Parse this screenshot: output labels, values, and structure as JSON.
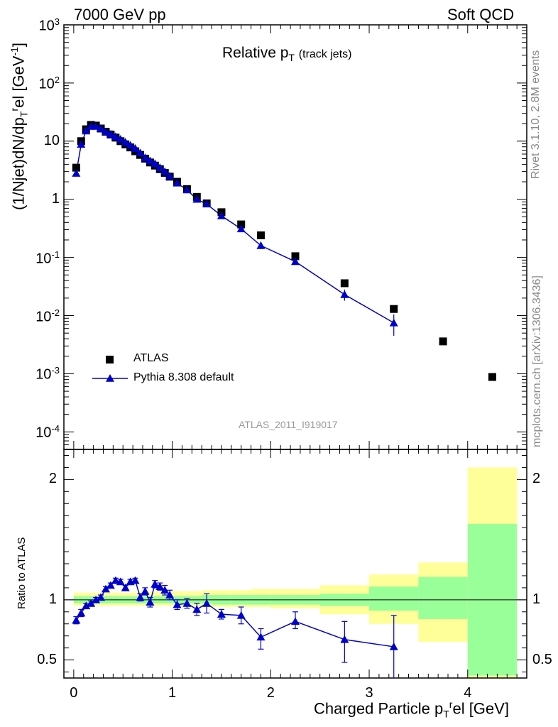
{
  "header": {
    "left": "7000 GeV pp",
    "right": "Soft QCD"
  },
  "side_labels": {
    "rivet": "Rivet 3.1.10,  2.8M events",
    "mcplots": "mcplots.cern.ch [arXiv:1306.3436]"
  },
  "chart_data": [
    {
      "type": "scatter",
      "title_main": "Relative p",
      "title_sub": "T",
      "title_suffix": "(track jets)",
      "ylabel": "(1/Njet)dN/dp",
      "ylabel_sub": "T",
      "ylabel_sup": "r",
      "ylabel_tail": "el [GeV",
      "ylabel_unit_sup": "-1",
      "ylabel_close": "]",
      "yscale": "log",
      "ylim": [
        5e-05,
        1000
      ],
      "xlim": [
        -0.1,
        4.6
      ],
      "y_tick_labels": [
        "10^-4",
        "10^-3",
        "10^-2",
        "10^-1",
        "1",
        "10",
        "10^2",
        "10^3"
      ],
      "analysis_label": "ATLAS_2011_I919017",
      "grid": false,
      "legend_position": "bottom-left",
      "series": [
        {
          "name": "ATLAS",
          "marker": "square",
          "color": "#000000",
          "x": [
            0.025,
            0.075,
            0.125,
            0.175,
            0.225,
            0.275,
            0.325,
            0.375,
            0.425,
            0.475,
            0.525,
            0.575,
            0.625,
            0.675,
            0.725,
            0.775,
            0.825,
            0.875,
            0.925,
            0.975,
            1.05,
            1.15,
            1.25,
            1.35,
            1.5,
            1.7,
            1.9,
            2.25,
            2.75,
            3.25,
            3.75,
            4.25
          ],
          "y": [
            3.5,
            10.0,
            16.0,
            19.0,
            18.5,
            16.5,
            14.5,
            13.0,
            11.5,
            10.0,
            8.8,
            7.8,
            6.7,
            5.8,
            5.0,
            4.3,
            3.8,
            3.3,
            2.85,
            2.45,
            2.0,
            1.5,
            1.1,
            0.85,
            0.6,
            0.37,
            0.24,
            0.105,
            0.036,
            0.013,
            0.0036,
            0.00088
          ]
        },
        {
          "name": "Pythia 8.308 default",
          "marker": "triangle",
          "color": "#0000cc",
          "line": true,
          "x": [
            0.025,
            0.075,
            0.125,
            0.175,
            0.225,
            0.275,
            0.325,
            0.375,
            0.425,
            0.475,
            0.525,
            0.575,
            0.625,
            0.675,
            0.725,
            0.775,
            0.825,
            0.875,
            0.925,
            0.975,
            1.05,
            1.15,
            1.25,
            1.35,
            1.5,
            1.7,
            1.9,
            2.25,
            2.75,
            3.25
          ],
          "y": [
            2.8,
            8.8,
            15.0,
            18.0,
            18.0,
            16.5,
            14.5,
            13.2,
            12.0,
            10.8,
            9.6,
            8.5,
            7.5,
            6.3,
            5.2,
            4.6,
            4.1,
            3.5,
            3.0,
            2.5,
            1.9,
            1.45,
            1.0,
            0.83,
            0.52,
            0.31,
            0.16,
            0.085,
            0.023,
            0.0075
          ],
          "yerr_high": [
            2.9,
            9.0,
            15.3,
            18.3,
            18.3,
            16.8,
            14.8,
            13.5,
            12.3,
            11.0,
            9.8,
            8.7,
            7.7,
            6.5,
            5.4,
            4.8,
            4.3,
            3.7,
            3.2,
            2.7,
            2.0,
            1.55,
            1.06,
            0.9,
            0.57,
            0.34,
            0.18,
            0.094,
            0.028,
            0.0105
          ],
          "yerr_low": [
            2.7,
            8.6,
            14.7,
            17.7,
            17.7,
            16.2,
            14.2,
            12.9,
            11.7,
            10.6,
            9.4,
            8.3,
            7.3,
            6.1,
            5.0,
            4.4,
            3.9,
            3.3,
            2.8,
            2.3,
            1.8,
            1.35,
            0.94,
            0.76,
            0.47,
            0.28,
            0.14,
            0.076,
            0.018,
            0.0045
          ]
        }
      ]
    },
    {
      "type": "scatter",
      "ylabel": "Ratio to ATLAS",
      "xlabel": "Charged Particle p",
      "xlabel_sub": "T",
      "xlabel_sup": "r",
      "xlabel_tail": "el [GeV]",
      "xlim": [
        -0.1,
        4.6
      ],
      "ylim": [
        0.35,
        2.25
      ],
      "x_tick_labels": [
        "0",
        "1",
        "2",
        "3",
        "4"
      ],
      "y_tick_labels": [
        "0.5",
        "1",
        "2"
      ],
      "reference_line": 1.0,
      "band_colors": {
        "inner": "#99ff99",
        "outer": "#ffff99"
      },
      "bands": {
        "edges": [
          0,
          0.05,
          0.1,
          0.15,
          0.2,
          0.25,
          0.3,
          0.35,
          0.4,
          0.45,
          0.5,
          0.55,
          0.6,
          0.65,
          0.7,
          0.75,
          0.8,
          0.85,
          0.9,
          0.95,
          1.0,
          1.1,
          1.2,
          1.3,
          1.4,
          1.6,
          1.8,
          2.0,
          2.5,
          3.0,
          3.5,
          4.0,
          4.5
        ],
        "inner_low": [
          0.97,
          0.97,
          0.97,
          0.97,
          0.97,
          0.97,
          0.97,
          0.97,
          0.97,
          0.97,
          0.97,
          0.97,
          0.97,
          0.97,
          0.97,
          0.97,
          0.97,
          0.97,
          0.97,
          0.97,
          0.97,
          0.97,
          0.97,
          0.97,
          0.96,
          0.96,
          0.96,
          0.96,
          0.95,
          0.91,
          0.84,
          0.37
        ],
        "inner_high": [
          1.03,
          1.03,
          1.03,
          1.03,
          1.03,
          1.03,
          1.03,
          1.03,
          1.03,
          1.03,
          1.03,
          1.03,
          1.03,
          1.03,
          1.03,
          1.03,
          1.03,
          1.03,
          1.03,
          1.03,
          1.03,
          1.03,
          1.03,
          1.04,
          1.04,
          1.04,
          1.04,
          1.04,
          1.05,
          1.11,
          1.19,
          1.63
        ],
        "outer_low": [
          0.95,
          0.95,
          0.95,
          0.95,
          0.95,
          0.95,
          0.95,
          0.95,
          0.95,
          0.95,
          0.95,
          0.95,
          0.95,
          0.95,
          0.95,
          0.95,
          0.95,
          0.95,
          0.95,
          0.95,
          0.95,
          0.95,
          0.95,
          0.94,
          0.94,
          0.94,
          0.94,
          0.93,
          0.88,
          0.8,
          0.65,
          0.35
        ],
        "outer_high": [
          1.06,
          1.06,
          1.06,
          1.06,
          1.06,
          1.06,
          1.06,
          1.06,
          1.06,
          1.06,
          1.06,
          1.06,
          1.06,
          1.07,
          1.07,
          1.07,
          1.07,
          1.07,
          1.07,
          1.07,
          1.07,
          1.07,
          1.07,
          1.08,
          1.08,
          1.08,
          1.09,
          1.09,
          1.12,
          1.21,
          1.31,
          2.1
        ]
      },
      "series": [
        {
          "name": "Pythia 8.308 default",
          "color": "#0000cc",
          "marker": "triangle",
          "line": true,
          "x": [
            0.025,
            0.075,
            0.125,
            0.175,
            0.225,
            0.275,
            0.325,
            0.375,
            0.425,
            0.475,
            0.525,
            0.575,
            0.625,
            0.675,
            0.725,
            0.775,
            0.825,
            0.875,
            0.925,
            0.975,
            1.05,
            1.15,
            1.25,
            1.35,
            1.5,
            1.7,
            1.9,
            2.25,
            2.75,
            3.25
          ],
          "y": [
            0.83,
            0.89,
            0.95,
            0.97,
            1.0,
            1.02,
            1.09,
            1.12,
            1.16,
            1.15,
            1.1,
            1.15,
            1.16,
            1.02,
            1.07,
            0.98,
            1.13,
            1.11,
            1.08,
            1.04,
            0.96,
            0.97,
            0.92,
            0.97,
            0.88,
            0.87,
            0.69,
            0.82,
            0.67,
            0.61
          ],
          "yerr_high": [
            0.86,
            0.92,
            0.97,
            0.99,
            1.02,
            1.04,
            1.11,
            1.14,
            1.18,
            1.17,
            1.12,
            1.17,
            1.18,
            1.05,
            1.1,
            1.02,
            1.16,
            1.14,
            1.12,
            1.08,
            1.0,
            1.01,
            0.97,
            1.05,
            0.92,
            0.94,
            0.76,
            0.9,
            0.82,
            0.87
          ],
          "yerr_low": [
            0.8,
            0.86,
            0.93,
            0.95,
            0.98,
            1.0,
            1.07,
            1.1,
            1.14,
            1.13,
            1.08,
            1.13,
            1.14,
            0.99,
            1.04,
            0.94,
            1.1,
            1.08,
            1.04,
            1.0,
            0.92,
            0.93,
            0.87,
            0.89,
            0.84,
            0.8,
            0.59,
            0.76,
            0.48,
            0.35
          ]
        }
      ]
    }
  ]
}
